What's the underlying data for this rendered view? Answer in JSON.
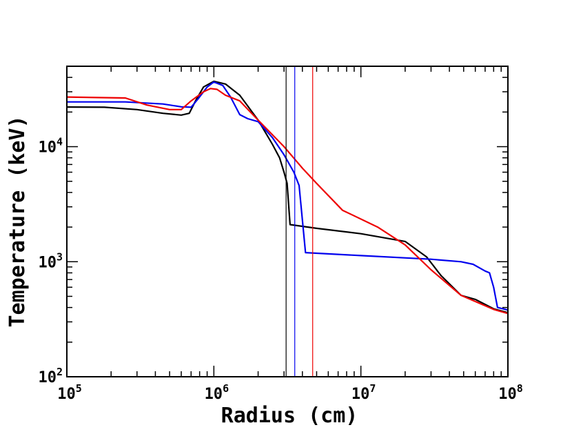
{
  "chart_data": {
    "type": "line",
    "title": "",
    "xlabel": "Radius (cm)",
    "ylabel": "Temperature (keV)",
    "xscale": "log",
    "yscale": "log",
    "xlim": [
      100000,
      100000000
    ],
    "ylim": [
      100,
      50000
    ],
    "grid": false,
    "x_ticks": [
      {
        "value": 100000,
        "base": "10",
        "exp": "5"
      },
      {
        "value": 1000000,
        "base": "10",
        "exp": "6"
      },
      {
        "value": 10000000,
        "base": "10",
        "exp": "7"
      },
      {
        "value": 100000000,
        "base": "10",
        "exp": "8"
      }
    ],
    "y_ticks": [
      {
        "value": 100,
        "base": "10",
        "exp": "2"
      },
      {
        "value": 1000,
        "base": "10",
        "exp": "3"
      },
      {
        "value": 10000,
        "base": "10",
        "exp": "4"
      }
    ],
    "series": [
      {
        "name": "black",
        "color": "#000000",
        "points": [
          [
            100000,
            22100
          ],
          [
            180000,
            22000
          ],
          [
            300000,
            21000
          ],
          [
            450000,
            19500
          ],
          [
            600000,
            18800
          ],
          [
            680000,
            19500
          ],
          [
            750000,
            25000
          ],
          [
            850000,
            33000
          ],
          [
            1000000,
            37000
          ],
          [
            1200000,
            35000
          ],
          [
            1500000,
            28000
          ],
          [
            2000000,
            17000
          ],
          [
            2500000,
            10500
          ],
          [
            2800000,
            8000
          ],
          [
            3000000,
            6000
          ],
          [
            3150000,
            4800
          ],
          [
            3300000,
            2100
          ],
          [
            5000000,
            1950
          ],
          [
            10000000,
            1750
          ],
          [
            20000000,
            1500
          ],
          [
            28000000,
            1100
          ],
          [
            35000000,
            760
          ],
          [
            48000000,
            510
          ],
          [
            60000000,
            470
          ],
          [
            80000000,
            390
          ],
          [
            100000000,
            360
          ]
        ]
      },
      {
        "name": "blue",
        "color": "#0000ee",
        "points": [
          [
            100000,
            24500
          ],
          [
            250000,
            24500
          ],
          [
            450000,
            23500
          ],
          [
            600000,
            22200
          ],
          [
            700000,
            22000
          ],
          [
            780000,
            26000
          ],
          [
            900000,
            33000
          ],
          [
            1000000,
            36500
          ],
          [
            1150000,
            34000
          ],
          [
            1300000,
            27000
          ],
          [
            1500000,
            19000
          ],
          [
            1700000,
            17500
          ],
          [
            2000000,
            16500
          ],
          [
            2500000,
            12000
          ],
          [
            3000000,
            8500
          ],
          [
            3500000,
            6000
          ],
          [
            3800000,
            4600
          ],
          [
            4000000,
            2300
          ],
          [
            4200000,
            1200
          ],
          [
            10000000,
            1130
          ],
          [
            30000000,
            1050
          ],
          [
            48000000,
            1000
          ],
          [
            58000000,
            950
          ],
          [
            70000000,
            830
          ],
          [
            75000000,
            800
          ],
          [
            80000000,
            600
          ],
          [
            85000000,
            400
          ],
          [
            100000000,
            380
          ]
        ]
      },
      {
        "name": "red",
        "color": "#ee0000",
        "points": [
          [
            100000,
            27000
          ],
          [
            250000,
            26500
          ],
          [
            350000,
            23000
          ],
          [
            500000,
            21000
          ],
          [
            600000,
            21000
          ],
          [
            700000,
            25000
          ],
          [
            850000,
            30000
          ],
          [
            950000,
            32000
          ],
          [
            1050000,
            31500
          ],
          [
            1200000,
            28000
          ],
          [
            1500000,
            25000
          ],
          [
            2000000,
            17000
          ],
          [
            3000000,
            10000
          ],
          [
            4000000,
            6500
          ],
          [
            5000000,
            4800
          ],
          [
            7500000,
            2800
          ],
          [
            13000000,
            2000
          ],
          [
            20000000,
            1400
          ],
          [
            30000000,
            850
          ],
          [
            48000000,
            510
          ],
          [
            80000000,
            385
          ],
          [
            100000000,
            355
          ]
        ]
      }
    ],
    "vertical_lines": [
      {
        "x": 3100000,
        "color": "#000000"
      },
      {
        "x": 3550000,
        "color": "#0000ee"
      },
      {
        "x": 4700000,
        "color": "#ee0000"
      }
    ]
  }
}
